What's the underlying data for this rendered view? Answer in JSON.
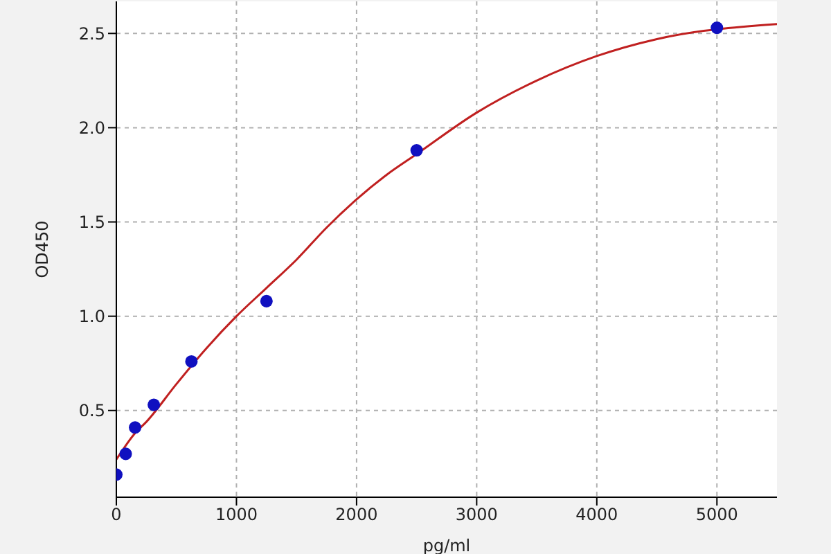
{
  "chart_data": {
    "type": "scatter",
    "xlabel": "pg/ml",
    "ylabel": "OD450",
    "xlim": [
      0,
      5500
    ],
    "ylim": [
      0.04,
      2.67
    ],
    "xticks": [
      0,
      1000,
      2000,
      3000,
      4000,
      5000
    ],
    "yticks": [
      0.5,
      {
        "value": 1,
        "label": "1.0"
      },
      1.5,
      {
        "value": 2,
        "label": "2.0"
      },
      2.5
    ],
    "grid": true,
    "series": [
      {
        "color": "#1010c0",
        "marker": "circle",
        "x": [
          0,
          78,
          156,
          312,
          625,
          1250,
          2500,
          5000
        ],
        "values": [
          0.16,
          0.27,
          0.41,
          0.53,
          0.76,
          1.08,
          1.88,
          2.53
        ]
      },
      {
        "type": "line",
        "color": "#c02020",
        "marker": "none",
        "line_style": "solid",
        "x": [
          0,
          156,
          250,
          500,
          750,
          1000,
          1250,
          1500,
          1750,
          2000,
          2250,
          2500,
          3000,
          3500,
          4000,
          4500,
          5500
        ],
        "values": [
          0.24,
          0.38,
          0.44,
          0.64,
          0.83,
          1.0,
          1.15,
          1.3,
          1.47,
          1.62,
          1.75,
          1.86,
          2.08,
          2.25,
          2.38,
          2.47,
          2.55
        ]
      }
    ]
  }
}
